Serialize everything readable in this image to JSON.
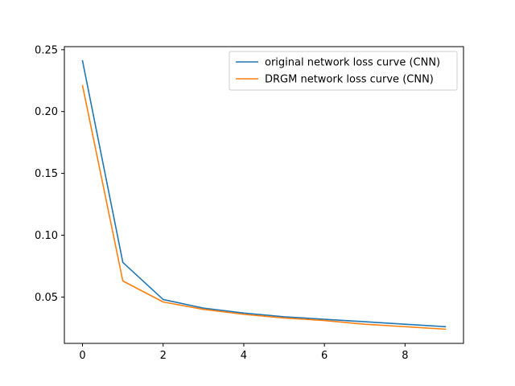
{
  "chart_data": {
    "type": "line",
    "title": "",
    "xlabel": "",
    "ylabel": "",
    "xlim": [
      -0.45,
      9.45
    ],
    "ylim": [
      0.0125,
      0.2525
    ],
    "x": [
      0,
      1,
      2,
      3,
      4,
      5,
      6,
      7,
      8,
      9
    ],
    "x_ticks": [
      0,
      2,
      4,
      6,
      8
    ],
    "x_tick_labels": [
      "0",
      "2",
      "4",
      "6",
      "8"
    ],
    "y_ticks": [
      0.05,
      0.1,
      0.15,
      0.2,
      0.25
    ],
    "y_tick_labels": [
      "0.05",
      "0.10",
      "0.15",
      "0.20",
      "0.25"
    ],
    "grid": false,
    "legend_position": "top-right",
    "series": [
      {
        "name": "original network loss curve (CNN)",
        "color": "#1f77b4",
        "values": [
          0.241,
          0.078,
          0.048,
          0.041,
          0.037,
          0.034,
          0.032,
          0.03,
          0.028,
          0.026
        ]
      },
      {
        "name": "DRGM network loss curve (CNN)",
        "color": "#ff7f0e",
        "values": [
          0.221,
          0.063,
          0.046,
          0.04,
          0.036,
          0.033,
          0.031,
          0.028,
          0.026,
          0.024
        ]
      }
    ]
  }
}
